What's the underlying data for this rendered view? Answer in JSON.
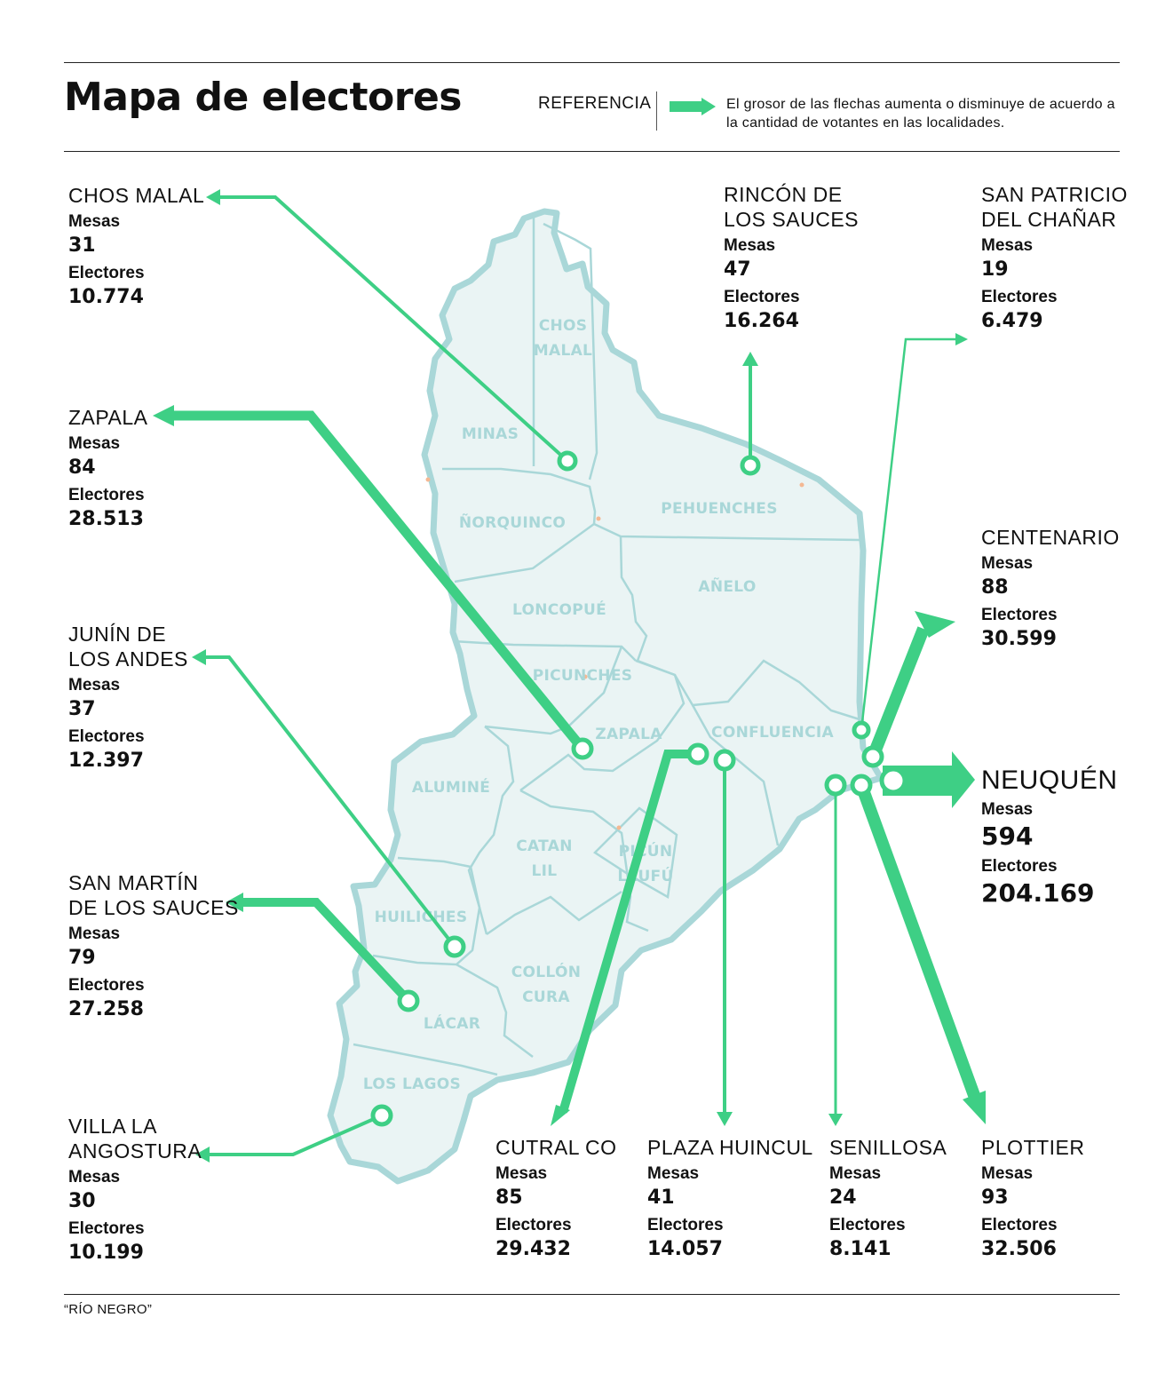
{
  "title": "Mapa de electores",
  "legend": {
    "label": "REFERENCIA",
    "text": "El grosor de las flechas aumenta o disminuye de acuerdo a la cantidad de votantes en las localidades."
  },
  "colors": {
    "accent": "#3ecf85",
    "map_fill": "#eaf4f4",
    "map_border": "#a9d7d8"
  },
  "departments": [
    "CHOS MALAL",
    "MINAS",
    "ÑORQUINCO",
    "PEHUENCHES",
    "AÑELO",
    "LONCOPUÉ",
    "PICUNCHES",
    "ZAPALA",
    "CONFLUENCIA",
    "ALUMINÉ",
    "CATAN LIL",
    "PICÚN LEUFÚ",
    "HUILICHES",
    "COLLÓN CURA",
    "LÁCAR",
    "LOS LAGOS"
  ],
  "localities": {
    "chos_malal": {
      "name": "CHOS MALAL",
      "mesas_label": "Mesas",
      "mesas": "31",
      "electores_label": "Electores",
      "electores": "10.774"
    },
    "zapala": {
      "name": "ZAPALA",
      "mesas_label": "Mesas",
      "mesas": "84",
      "electores_label": "Electores",
      "electores": "28.513"
    },
    "junin": {
      "name_1": "JUNÍN DE",
      "name_2": "LOS ANDES",
      "mesas_label": "Mesas",
      "mesas": "37",
      "electores_label": "Electores",
      "electores": "12.397"
    },
    "san_martin": {
      "name_1": "SAN MARTÍN",
      "name_2": "DE LOS SAUCES",
      "mesas_label": "Mesas",
      "mesas": "79",
      "electores_label": "Electores",
      "electores": "27.258"
    },
    "villa_la_angostura": {
      "name_1": "VILLA LA",
      "name_2": "ANGOSTURA",
      "mesas_label": "Mesas",
      "mesas": "30",
      "electores_label": "Electores",
      "electores": "10.199"
    },
    "rincon": {
      "name_1": "RINCÓN DE",
      "name_2": "LOS SAUCES",
      "mesas_label": "Mesas",
      "mesas": "47",
      "electores_label": "Electores",
      "electores": "16.264"
    },
    "san_patricio": {
      "name_1": "SAN PATRICIO",
      "name_2": "DEL CHAÑAR",
      "mesas_label": "Mesas",
      "mesas": "19",
      "electores_label": "Electores",
      "electores": "6.479"
    },
    "centenario": {
      "name": "CENTENARIO",
      "mesas_label": "Mesas",
      "mesas": "88",
      "electores_label": "Electores",
      "electores": "30.599"
    },
    "neuquen": {
      "name": "NEUQUÉN",
      "mesas_label": "Mesas",
      "mesas": "594",
      "electores_label": "Electores",
      "electores": "204.169"
    },
    "cutral_co": {
      "name": "CUTRAL CO",
      "mesas_label": "Mesas",
      "mesas": "85",
      "electores_label": "Electores",
      "electores": "29.432"
    },
    "plaza_huincul": {
      "name": "PLAZA HUINCUL",
      "mesas_label": "Mesas",
      "mesas": "41",
      "electores_label": "Electores",
      "electores": "14.057"
    },
    "senillosa": {
      "name": "SENILLOSA",
      "mesas_label": "Mesas",
      "mesas": "24",
      "electores_label": "Electores",
      "electores": "8.141"
    },
    "plottier": {
      "name": "PLOTTIER",
      "mesas_label": "Mesas",
      "mesas": "93",
      "electores_label": "Electores",
      "electores": "32.506"
    }
  },
  "footnote": "“RÍO NEGRO”"
}
